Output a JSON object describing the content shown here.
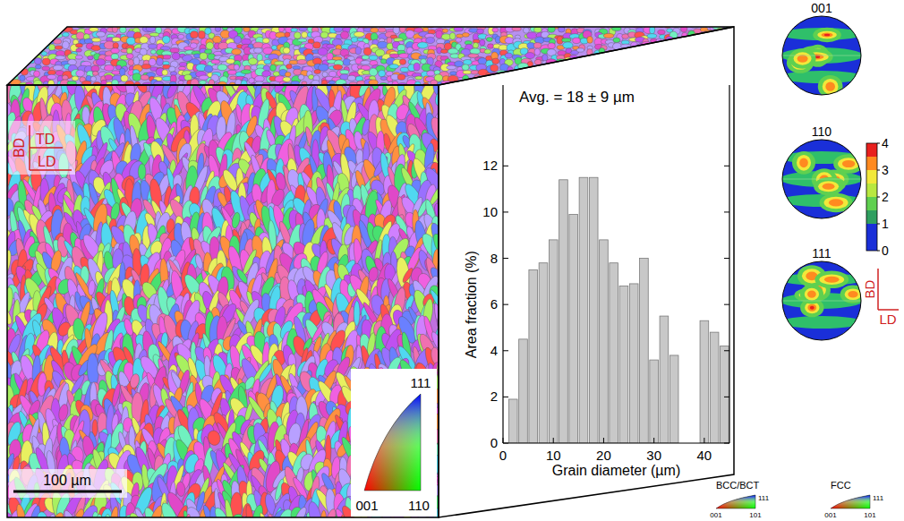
{
  "chart_data": {
    "type": "histogram",
    "title": "Avg. = 18 ± 9 µm",
    "x_label": "Grain diameter (µm)",
    "y_label": "Area fraction (%)",
    "bins": [
      1,
      3,
      5,
      7,
      9,
      11,
      13,
      15,
      17,
      19,
      21,
      23,
      25,
      27,
      29,
      31,
      33,
      35,
      37,
      39,
      41,
      43,
      45
    ],
    "values": [
      1.9,
      4.5,
      7.5,
      7.8,
      8.8,
      11.4,
      9.9,
      11.5,
      11.5,
      8.8,
      7.8,
      6.8,
      6.9,
      8.0,
      3.6,
      5.5,
      3.8,
      0,
      0,
      5.3,
      4.8,
      4.2
    ],
    "color": "#c8c8c8",
    "xlim": [
      0,
      45
    ],
    "xticks": [
      0,
      10,
      20,
      30,
      40
    ],
    "ylim": [
      0,
      15.5
    ],
    "yticks": [
      0,
      2,
      4,
      6,
      8,
      10,
      12
    ]
  },
  "figure": {
    "orientation_axes": {
      "labels": [
        "BD",
        "TD",
        "LD"
      ]
    },
    "scale_bar": {
      "label": "100 µm"
    },
    "ipf_inset": {
      "corners": [
        "111",
        "001",
        "110"
      ]
    },
    "pole_figures": {
      "titles": [
        "001",
        "110",
        "111"
      ],
      "axes": [
        "BD",
        "LD"
      ]
    },
    "color_bar": {
      "range": [
        0,
        4
      ],
      "ticks": [
        0,
        1,
        2,
        3,
        4
      ]
    },
    "ipf_keys": [
      {
        "label": "BCC/BCT",
        "corners": [
          "111",
          "001",
          "101"
        ]
      },
      {
        "label": "FCC",
        "corners": [
          "111",
          "001",
          "101"
        ]
      }
    ]
  }
}
